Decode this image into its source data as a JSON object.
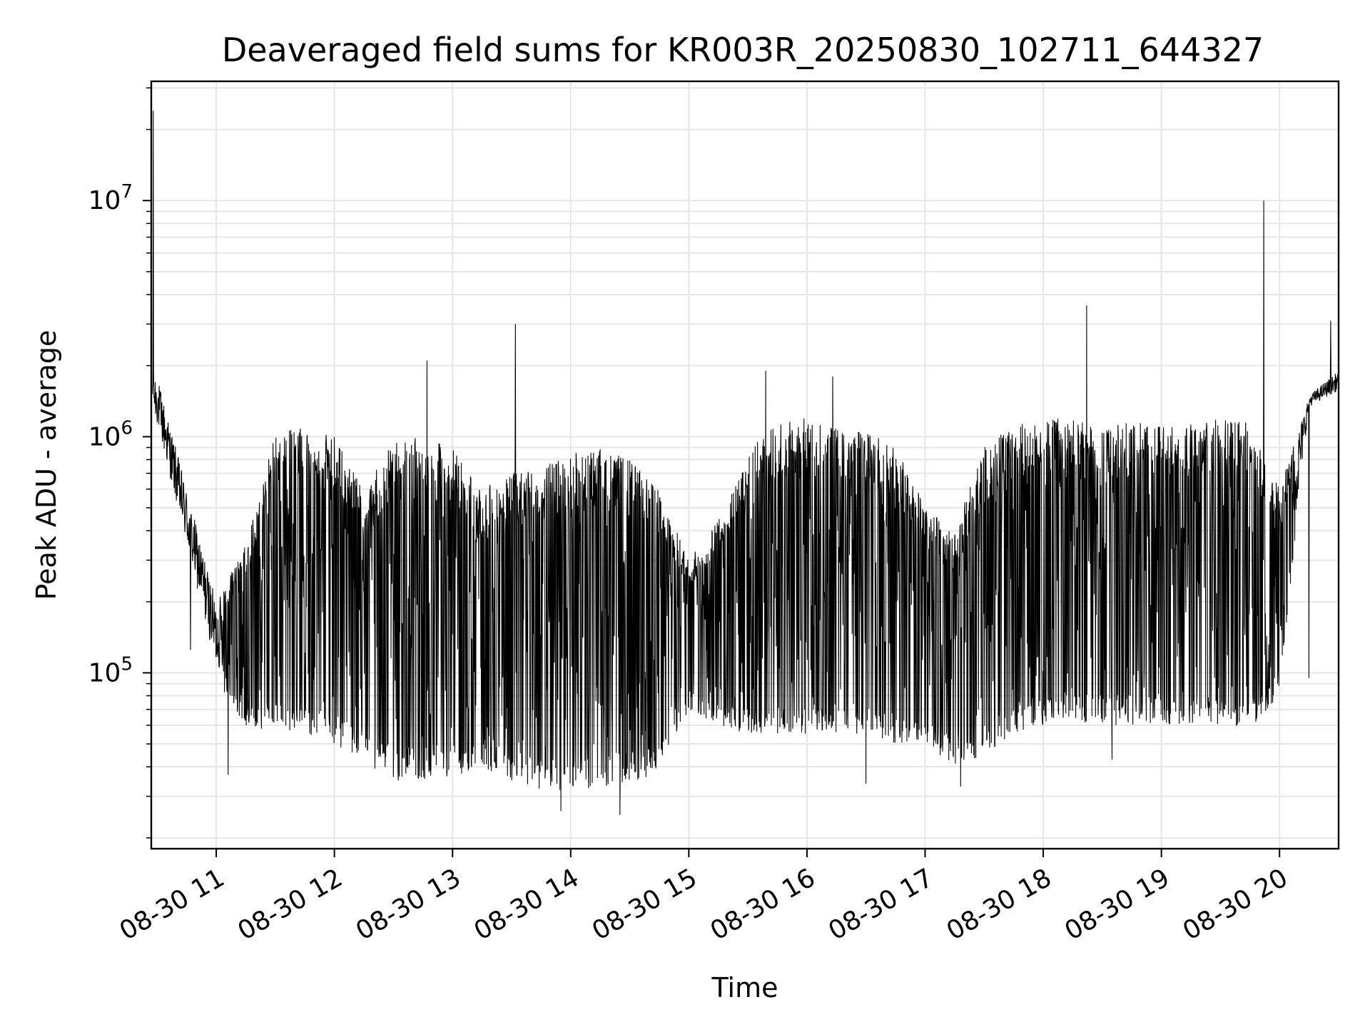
{
  "chart_data": {
    "type": "line",
    "title": "Deaveraged field sums for KR003R_20250830_102711_644327",
    "xlabel": "Time",
    "ylabel": "Peak ADU - average",
    "yscale": "log",
    "ylim": [
      18000,
      32000000
    ],
    "xlim": [
      "2025-08-30 10:27",
      "2025-08-30 20:30"
    ],
    "grid": true,
    "line_color": "#000000",
    "grid_color": "#e6e6e6",
    "x_ticks": [
      {
        "value": "2025-08-30 11:00",
        "label": "08-30 11"
      },
      {
        "value": "2025-08-30 12:00",
        "label": "08-30 12"
      },
      {
        "value": "2025-08-30 13:00",
        "label": "08-30 13"
      },
      {
        "value": "2025-08-30 14:00",
        "label": "08-30 14"
      },
      {
        "value": "2025-08-30 15:00",
        "label": "08-30 15"
      },
      {
        "value": "2025-08-30 16:00",
        "label": "08-30 16"
      },
      {
        "value": "2025-08-30 17:00",
        "label": "08-30 17"
      },
      {
        "value": "2025-08-30 18:00",
        "label": "08-30 18"
      },
      {
        "value": "2025-08-30 19:00",
        "label": "08-30 19"
      },
      {
        "value": "2025-08-30 20:00",
        "label": "08-30 20"
      }
    ],
    "y_ticks": [
      {
        "value": 100000,
        "base": "10",
        "exp": "5"
      },
      {
        "value": 1000000,
        "base": "10",
        "exp": "6"
      },
      {
        "value": 10000000,
        "base": "10",
        "exp": "7"
      }
    ],
    "envelope": {
      "x": [
        "2025-08-30 10:27",
        "2025-08-30 10:30",
        "2025-08-30 10:45",
        "2025-08-30 11:00",
        "2025-08-30 11:15",
        "2025-08-30 11:30",
        "2025-08-30 11:45",
        "2025-08-30 12:00",
        "2025-08-30 12:15",
        "2025-08-30 12:30",
        "2025-08-30 12:45",
        "2025-08-30 13:00",
        "2025-08-30 13:15",
        "2025-08-30 13:30",
        "2025-08-30 13:45",
        "2025-08-30 14:00",
        "2025-08-30 14:15",
        "2025-08-30 14:30",
        "2025-08-30 14:45",
        "2025-08-30 15:00",
        "2025-08-30 15:15",
        "2025-08-30 15:30",
        "2025-08-30 15:45",
        "2025-08-30 16:00",
        "2025-08-30 16:15",
        "2025-08-30 16:30",
        "2025-08-30 16:45",
        "2025-08-30 17:00",
        "2025-08-30 17:15",
        "2025-08-30 17:30",
        "2025-08-30 17:45",
        "2025-08-30 18:00",
        "2025-08-30 18:15",
        "2025-08-30 18:30",
        "2025-08-30 18:45",
        "2025-08-30 19:00",
        "2025-08-30 19:15",
        "2025-08-30 19:30",
        "2025-08-30 19:45",
        "2025-08-30 20:00",
        "2025-08-30 20:15",
        "2025-08-30 20:30"
      ],
      "upper": [
        2000000,
        1800000,
        600000,
        200000,
        350000,
        1050000,
        1100000,
        1000000,
        600000,
        950000,
        1000000,
        900000,
        600000,
        700000,
        750000,
        850000,
        900000,
        800000,
        600000,
        300000,
        450000,
        900000,
        1150000,
        1200000,
        1100000,
        1050000,
        950000,
        500000,
        400000,
        900000,
        1150000,
        1200000,
        1200000,
        1150000,
        1150000,
        1150000,
        1150000,
        1200000,
        1150000,
        600000,
        1500000,
        1900000
      ],
      "lower": [
        1200000,
        1000000,
        300000,
        90000,
        60000,
        55000,
        55000,
        50000,
        42000,
        35000,
        35000,
        36000,
        38000,
        35000,
        32000,
        31000,
        33000,
        34000,
        38000,
        70000,
        60000,
        55000,
        55000,
        55000,
        55000,
        55000,
        50000,
        50000,
        40000,
        45000,
        55000,
        60000,
        62000,
        60000,
        60000,
        60000,
        60000,
        60000,
        58000,
        80000,
        1300000,
        1500000
      ]
    },
    "spikes": [
      {
        "x": "2025-08-30 10:28",
        "y": 24000000
      },
      {
        "x": "2025-08-30 12:47",
        "y": 2100000
      },
      {
        "x": "2025-08-30 13:32",
        "y": 3000000
      },
      {
        "x": "2025-08-30 15:39",
        "y": 1900000
      },
      {
        "x": "2025-08-30 16:13",
        "y": 1800000
      },
      {
        "x": "2025-08-30 18:22",
        "y": 3600000
      },
      {
        "x": "2025-08-30 19:52",
        "y": 10000000
      },
      {
        "x": "2025-08-30 20:26",
        "y": 3100000
      }
    ],
    "dips": [
      {
        "x": "2025-08-30 10:47",
        "y": 125000
      },
      {
        "x": "2025-08-30 11:06",
        "y": 37000
      },
      {
        "x": "2025-08-30 13:55",
        "y": 26000
      },
      {
        "x": "2025-08-30 14:25",
        "y": 25000
      },
      {
        "x": "2025-08-30 16:30",
        "y": 34000
      },
      {
        "x": "2025-08-30 17:18",
        "y": 33000
      },
      {
        "x": "2025-08-30 18:35",
        "y": 43000
      },
      {
        "x": "2025-08-30 20:15",
        "y": 95000
      }
    ]
  }
}
